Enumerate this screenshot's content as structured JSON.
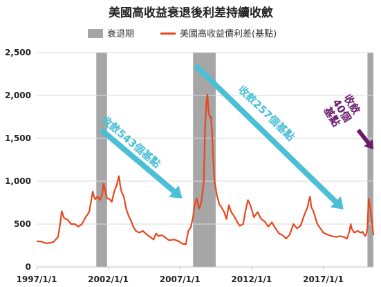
{
  "chart_data": {
    "type": "line",
    "title": "美國高收益衰退後利差持續收斂",
    "legend": {
      "placement": "top",
      "items": [
        {
          "name": "衰退期",
          "color": "#a6a6a6"
        },
        {
          "name": "美國高收益債利差(基點)",
          "color": "#e8461c"
        }
      ]
    },
    "x_range": [
      "1997-01-01",
      "2020-07-01"
    ],
    "x_ticks": [
      "1997/1/1",
      "2002/1/1",
      "2007/1/1",
      "2012/1/1",
      "2017/1/1"
    ],
    "x_tick_dates": [
      "1997-01-01",
      "2002-01-01",
      "2007-01-01",
      "2012-01-01",
      "2017-01-01"
    ],
    "ylim": [
      0,
      2500
    ],
    "y_ticks": [
      0,
      500,
      1000,
      1500,
      2000,
      2500
    ],
    "y_tick_labels": [
      "0",
      "500",
      "1,000",
      "1,500",
      "2,000",
      "2,500"
    ],
    "grid": "horizontal",
    "recessions": [
      {
        "start": "2001-03-01",
        "end": "2001-11-30"
      },
      {
        "start": "2007-12-01",
        "end": "2009-06-30"
      },
      {
        "start": "2020-02-01",
        "end": "2020-06-30"
      }
    ],
    "series": [
      {
        "name": "美國高收益債利差(基點)",
        "color": "#e8461c",
        "points": [
          [
            "1997-01-01",
            300
          ],
          [
            "1997-05-01",
            295
          ],
          [
            "1997-09-01",
            275
          ],
          [
            "1997-12-01",
            280
          ],
          [
            "1998-03-01",
            290
          ],
          [
            "1998-07-01",
            350
          ],
          [
            "1998-09-01",
            530
          ],
          [
            "1998-10-01",
            650
          ],
          [
            "1998-12-01",
            570
          ],
          [
            "1999-03-01",
            550
          ],
          [
            "1999-06-01",
            500
          ],
          [
            "1999-09-01",
            500
          ],
          [
            "1999-12-01",
            470
          ],
          [
            "2000-03-01",
            500
          ],
          [
            "2000-06-01",
            580
          ],
          [
            "2000-09-01",
            640
          ],
          [
            "2000-12-01",
            880
          ],
          [
            "2001-01-01",
            820
          ],
          [
            "2001-02-01",
            790
          ],
          [
            "2001-04-01",
            820
          ],
          [
            "2001-06-01",
            780
          ],
          [
            "2001-08-01",
            850
          ],
          [
            "2001-09-01",
            970
          ],
          [
            "2001-10-01",
            920
          ],
          [
            "2001-11-01",
            850
          ],
          [
            "2001-12-01",
            800
          ],
          [
            "2002-02-01",
            790
          ],
          [
            "2002-04-01",
            760
          ],
          [
            "2002-06-01",
            880
          ],
          [
            "2002-08-01",
            950
          ],
          [
            "2002-09-01",
            1010
          ],
          [
            "2002-10-01",
            1060
          ],
          [
            "2002-11-01",
            950
          ],
          [
            "2002-12-01",
            880
          ],
          [
            "2003-02-01",
            820
          ],
          [
            "2003-04-01",
            680
          ],
          [
            "2003-06-01",
            600
          ],
          [
            "2003-08-01",
            540
          ],
          [
            "2003-10-01",
            470
          ],
          [
            "2003-12-01",
            420
          ],
          [
            "2004-03-01",
            400
          ],
          [
            "2004-06-01",
            420
          ],
          [
            "2004-09-01",
            380
          ],
          [
            "2004-12-01",
            350
          ],
          [
            "2005-03-01",
            320
          ],
          [
            "2005-05-01",
            390
          ],
          [
            "2005-07-01",
            360
          ],
          [
            "2005-10-01",
            370
          ],
          [
            "2006-01-01",
            340
          ],
          [
            "2006-04-01",
            310
          ],
          [
            "2006-08-01",
            320
          ],
          [
            "2006-12-01",
            300
          ],
          [
            "2007-03-01",
            270
          ],
          [
            "2007-06-01",
            265
          ],
          [
            "2007-08-01",
            420
          ],
          [
            "2007-10-01",
            460
          ],
          [
            "2007-12-01",
            580
          ],
          [
            "2008-01-01",
            700
          ],
          [
            "2008-03-01",
            800
          ],
          [
            "2008-05-01",
            680
          ],
          [
            "2008-07-01",
            760
          ],
          [
            "2008-09-01",
            1000
          ],
          [
            "2008-10-01",
            1600
          ],
          [
            "2008-11-01",
            1900
          ],
          [
            "2008-12-01",
            2010
          ],
          [
            "2009-01-01",
            1800
          ],
          [
            "2009-02-01",
            1750
          ],
          [
            "2009-03-01",
            1750
          ],
          [
            "2009-04-01",
            1550
          ],
          [
            "2009-05-01",
            1250
          ],
          [
            "2009-06-01",
            1000
          ],
          [
            "2009-08-01",
            830
          ],
          [
            "2009-10-01",
            730
          ],
          [
            "2009-12-01",
            690
          ],
          [
            "2010-02-01",
            640
          ],
          [
            "2010-04-01",
            560
          ],
          [
            "2010-06-01",
            720
          ],
          [
            "2010-08-01",
            640
          ],
          [
            "2010-10-01",
            600
          ],
          [
            "2010-12-01",
            550
          ],
          [
            "2011-03-01",
            480
          ],
          [
            "2011-06-01",
            500
          ],
          [
            "2011-08-01",
            660
          ],
          [
            "2011-10-01",
            780
          ],
          [
            "2011-12-01",
            720
          ],
          [
            "2012-03-01",
            580
          ],
          [
            "2012-06-01",
            640
          ],
          [
            "2012-09-01",
            560
          ],
          [
            "2012-12-01",
            530
          ],
          [
            "2013-03-01",
            470
          ],
          [
            "2013-06-01",
            520
          ],
          [
            "2013-09-01",
            450
          ],
          [
            "2013-12-01",
            390
          ],
          [
            "2014-03-01",
            370
          ],
          [
            "2014-06-01",
            330
          ],
          [
            "2014-09-01",
            380
          ],
          [
            "2014-12-01",
            500
          ],
          [
            "2015-03-01",
            450
          ],
          [
            "2015-06-01",
            480
          ],
          [
            "2015-09-01",
            600
          ],
          [
            "2015-12-01",
            700
          ],
          [
            "2016-01-01",
            780
          ],
          [
            "2016-02-01",
            820
          ],
          [
            "2016-03-01",
            700
          ],
          [
            "2016-05-01",
            640
          ],
          [
            "2016-08-01",
            500
          ],
          [
            "2016-11-01",
            440
          ],
          [
            "2017-01-01",
            400
          ],
          [
            "2017-04-01",
            380
          ],
          [
            "2017-08-01",
            360
          ],
          [
            "2017-12-01",
            350
          ],
          [
            "2018-03-01",
            360
          ],
          [
            "2018-06-01",
            350
          ],
          [
            "2018-09-01",
            330
          ],
          [
            "2018-11-01",
            420
          ],
          [
            "2018-12-01",
            500
          ],
          [
            "2019-01-01",
            440
          ],
          [
            "2019-03-01",
            400
          ],
          [
            "2019-06-01",
            420
          ],
          [
            "2019-08-01",
            400
          ],
          [
            "2019-10-01",
            410
          ],
          [
            "2019-12-01",
            360
          ],
          [
            "2020-01-01",
            380
          ],
          [
            "2020-02-01",
            450
          ],
          [
            "2020-03-01",
            800
          ],
          [
            "2020-04-01",
            720
          ],
          [
            "2020-05-01",
            620
          ],
          [
            "2020-06-01",
            510
          ],
          [
            "2020-07-01",
            370
          ]
        ]
      }
    ],
    "annotations": [
      {
        "text": "收斂543個基點",
        "color": "#4bbfd6",
        "from": [
          "2001-07-01",
          1600
        ],
        "to": [
          "2007-03-01",
          800
        ]
      },
      {
        "text": "收斂257個基點",
        "color": "#4bbfd6",
        "from": [
          "2008-02-01",
          2350
        ],
        "to": [
          "2018-06-01",
          670
        ]
      },
      {
        "text": "收斂\n40個\n基點",
        "color": "#6a1b6e",
        "from": [
          "2020-07-01",
          1570
        ],
        "to": [
          "2020-07-01",
          1400
        ]
      }
    ]
  }
}
